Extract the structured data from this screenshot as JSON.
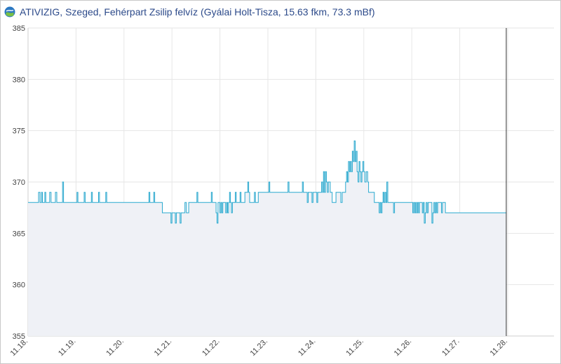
{
  "header": {
    "title": "ATIVIZIG, Szeged, Fehérpart Zsilip felvíz (Gyálai Holt-Tisza, 15.63 fkm, 73.3 mBf)",
    "logo_icon": "ativizig-logo-icon"
  },
  "colors": {
    "line": "#29a9cf",
    "area": "#eff1f6",
    "grid": "#e6e6e6",
    "now_marker": "#333333",
    "title": "#2c4a8a"
  },
  "chart_data": {
    "type": "area",
    "title": "ATIVIZIG, Szeged, Fehérpart Zsilip felvíz (Gyálai Holt-Tisza, 15.63 fkm, 73.3 mBf)",
    "xlabel": "",
    "ylabel": "",
    "ylim": [
      355,
      385
    ],
    "yticks": [
      355,
      360,
      365,
      370,
      375,
      380,
      385
    ],
    "xlim": [
      0,
      11
    ],
    "xticks": [
      {
        "x": 0,
        "label": "11.18."
      },
      {
        "x": 1,
        "label": "11.19."
      },
      {
        "x": 2,
        "label": "11.20."
      },
      {
        "x": 3,
        "label": "11.21."
      },
      {
        "x": 4,
        "label": "11.22."
      },
      {
        "x": 5,
        "label": "11.23."
      },
      {
        "x": 6,
        "label": "11.24."
      },
      {
        "x": 7,
        "label": "11.25."
      },
      {
        "x": 8,
        "label": "11.26."
      },
      {
        "x": 9,
        "label": "11.27."
      },
      {
        "x": 10,
        "label": "11.28."
      }
    ],
    "now_marker_x": 9.97,
    "grid": true,
    "series": [
      {
        "values": [
          [
            0.0,
            368
          ],
          [
            0.2,
            368
          ],
          [
            0.22,
            369
          ],
          [
            0.25,
            368
          ],
          [
            0.28,
            369
          ],
          [
            0.3,
            368
          ],
          [
            0.35,
            369
          ],
          [
            0.37,
            368
          ],
          [
            0.45,
            369
          ],
          [
            0.48,
            368
          ],
          [
            0.55,
            368
          ],
          [
            0.57,
            369
          ],
          [
            0.6,
            368
          ],
          [
            0.7,
            368
          ],
          [
            0.72,
            370
          ],
          [
            0.74,
            368
          ],
          [
            1.0,
            368
          ],
          [
            1.02,
            369
          ],
          [
            1.04,
            368
          ],
          [
            1.15,
            368
          ],
          [
            1.17,
            369
          ],
          [
            1.19,
            368
          ],
          [
            1.3,
            368
          ],
          [
            1.32,
            369
          ],
          [
            1.34,
            368
          ],
          [
            1.45,
            368
          ],
          [
            1.47,
            369
          ],
          [
            1.49,
            368
          ],
          [
            1.6,
            368
          ],
          [
            1.62,
            369
          ],
          [
            1.64,
            368
          ],
          [
            2.5,
            368
          ],
          [
            2.52,
            369
          ],
          [
            2.54,
            368
          ],
          [
            2.6,
            368
          ],
          [
            2.62,
            369
          ],
          [
            2.64,
            368
          ],
          [
            2.7,
            368
          ],
          [
            2.8,
            367
          ],
          [
            2.95,
            367
          ],
          [
            2.98,
            366
          ],
          [
            3.0,
            367
          ],
          [
            3.05,
            367
          ],
          [
            3.07,
            366
          ],
          [
            3.09,
            367
          ],
          [
            3.15,
            367
          ],
          [
            3.17,
            366
          ],
          [
            3.19,
            367
          ],
          [
            3.25,
            367
          ],
          [
            3.27,
            368
          ],
          [
            3.3,
            367
          ],
          [
            3.35,
            368
          ],
          [
            3.5,
            368
          ],
          [
            3.52,
            369
          ],
          [
            3.54,
            368
          ],
          [
            3.8,
            368
          ],
          [
            3.82,
            369
          ],
          [
            3.84,
            368
          ],
          [
            3.9,
            368
          ],
          [
            3.92,
            367
          ],
          [
            3.94,
            366
          ],
          [
            3.96,
            368
          ],
          [
            4.0,
            367
          ],
          [
            4.02,
            368
          ],
          [
            4.04,
            367
          ],
          [
            4.06,
            368
          ],
          [
            4.1,
            368
          ],
          [
            4.12,
            367
          ],
          [
            4.14,
            368
          ],
          [
            4.16,
            367
          ],
          [
            4.18,
            368
          ],
          [
            4.2,
            369
          ],
          [
            4.22,
            368
          ],
          [
            4.24,
            367
          ],
          [
            4.26,
            368
          ],
          [
            4.3,
            368
          ],
          [
            4.32,
            369
          ],
          [
            4.34,
            368
          ],
          [
            4.4,
            368
          ],
          [
            4.42,
            369
          ],
          [
            4.44,
            368
          ],
          [
            4.5,
            368
          ],
          [
            4.52,
            369
          ],
          [
            4.56,
            369
          ],
          [
            4.58,
            370
          ],
          [
            4.6,
            369
          ],
          [
            4.62,
            368
          ],
          [
            4.7,
            368
          ],
          [
            4.72,
            369
          ],
          [
            4.74,
            368
          ],
          [
            4.8,
            369
          ],
          [
            5.0,
            369
          ],
          [
            5.02,
            370
          ],
          [
            5.04,
            369
          ],
          [
            5.2,
            369
          ],
          [
            5.4,
            369
          ],
          [
            5.42,
            370
          ],
          [
            5.44,
            369
          ],
          [
            5.6,
            369
          ],
          [
            5.7,
            369
          ],
          [
            5.72,
            370
          ],
          [
            5.74,
            369
          ],
          [
            5.8,
            369
          ],
          [
            5.82,
            368
          ],
          [
            5.84,
            369
          ],
          [
            5.9,
            369
          ],
          [
            5.92,
            368
          ],
          [
            5.94,
            369
          ],
          [
            6.0,
            369
          ],
          [
            6.02,
            368
          ],
          [
            6.04,
            369
          ],
          [
            6.1,
            369
          ],
          [
            6.12,
            370
          ],
          [
            6.14,
            369
          ],
          [
            6.16,
            371
          ],
          [
            6.18,
            369
          ],
          [
            6.2,
            371
          ],
          [
            6.22,
            370
          ],
          [
            6.24,
            369
          ],
          [
            6.26,
            370
          ],
          [
            6.3,
            369
          ],
          [
            6.34,
            368
          ],
          [
            6.4,
            368
          ],
          [
            6.42,
            369
          ],
          [
            6.5,
            369
          ],
          [
            6.52,
            368
          ],
          [
            6.55,
            369
          ],
          [
            6.6,
            369
          ],
          [
            6.62,
            370
          ],
          [
            6.64,
            371
          ],
          [
            6.66,
            370
          ],
          [
            6.68,
            372
          ],
          [
            6.7,
            371
          ],
          [
            6.72,
            372
          ],
          [
            6.74,
            371
          ],
          [
            6.76,
            373
          ],
          [
            6.78,
            372
          ],
          [
            6.8,
            374
          ],
          [
            6.82,
            372
          ],
          [
            6.84,
            373
          ],
          [
            6.86,
            371
          ],
          [
            6.88,
            370
          ],
          [
            6.9,
            372
          ],
          [
            6.92,
            371
          ],
          [
            6.94,
            370
          ],
          [
            6.96,
            371
          ],
          [
            6.98,
            372
          ],
          [
            7.0,
            371
          ],
          [
            7.02,
            370
          ],
          [
            7.05,
            371
          ],
          [
            7.08,
            370
          ],
          [
            7.1,
            369
          ],
          [
            7.2,
            369
          ],
          [
            7.22,
            368
          ],
          [
            7.3,
            368
          ],
          [
            7.32,
            367
          ],
          [
            7.34,
            368
          ],
          [
            7.36,
            367
          ],
          [
            7.38,
            368
          ],
          [
            7.4,
            369
          ],
          [
            7.42,
            368
          ],
          [
            7.44,
            369
          ],
          [
            7.46,
            368
          ],
          [
            7.48,
            370
          ],
          [
            7.5,
            368
          ],
          [
            7.6,
            368
          ],
          [
            7.62,
            367
          ],
          [
            7.64,
            368
          ],
          [
            7.7,
            368
          ],
          [
            8.0,
            368
          ],
          [
            8.02,
            367
          ],
          [
            8.04,
            368
          ],
          [
            8.06,
            367
          ],
          [
            8.08,
            368
          ],
          [
            8.1,
            367
          ],
          [
            8.12,
            368
          ],
          [
            8.14,
            367
          ],
          [
            8.16,
            368
          ],
          [
            8.2,
            368
          ],
          [
            8.22,
            367
          ],
          [
            8.24,
            368
          ],
          [
            8.26,
            366
          ],
          [
            8.28,
            367
          ],
          [
            8.3,
            368
          ],
          [
            8.32,
            367
          ],
          [
            8.34,
            368
          ],
          [
            8.4,
            368
          ],
          [
            8.42,
            366
          ],
          [
            8.44,
            367
          ],
          [
            8.46,
            368
          ],
          [
            8.48,
            367
          ],
          [
            8.5,
            368
          ],
          [
            8.52,
            367
          ],
          [
            8.54,
            368
          ],
          [
            8.6,
            368
          ],
          [
            8.62,
            367
          ],
          [
            8.64,
            368
          ],
          [
            8.7,
            367
          ],
          [
            8.8,
            367
          ],
          [
            9.2,
            367
          ],
          [
            9.5,
            367
          ],
          [
            9.97,
            367
          ]
        ]
      }
    ]
  }
}
